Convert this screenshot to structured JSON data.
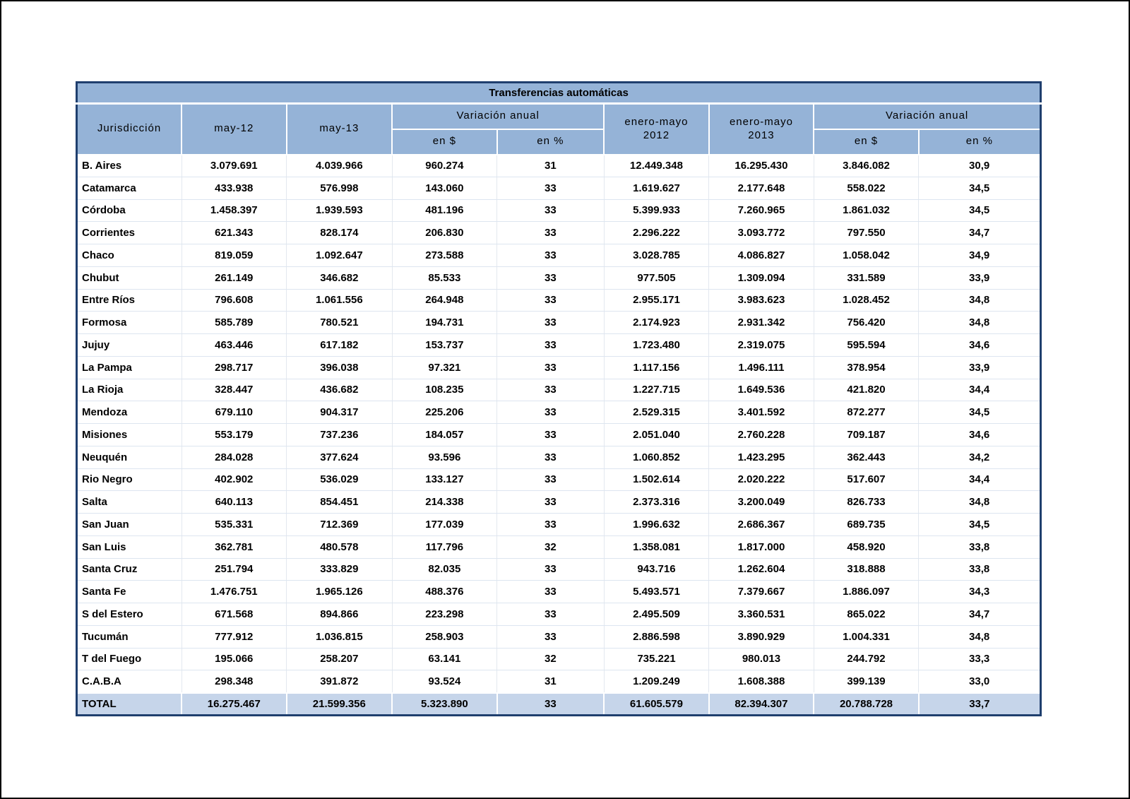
{
  "chart_data": {
    "type": "table",
    "title": "Transferencias automáticas",
    "columns": [
      "Jurisdicción",
      "may-12",
      "may-13",
      "Variación anual en $",
      "Variación anual en %",
      "enero-mayo 2012",
      "enero-mayo 2013",
      "Variación anual en $ (enero-mayo)",
      "Variación anual en % (enero-mayo)"
    ],
    "rows": [
      [
        "B. Aires",
        "3.079.691",
        "4.039.966",
        "960.274",
        "31",
        "12.449.348",
        "16.295.430",
        "3.846.082",
        "30,9"
      ],
      [
        "Catamarca",
        "433.938",
        "576.998",
        "143.060",
        "33",
        "1.619.627",
        "2.177.648",
        "558.022",
        "34,5"
      ],
      [
        "Córdoba",
        "1.458.397",
        "1.939.593",
        "481.196",
        "33",
        "5.399.933",
        "7.260.965",
        "1.861.032",
        "34,5"
      ],
      [
        "Corrientes",
        "621.343",
        "828.174",
        "206.830",
        "33",
        "2.296.222",
        "3.093.772",
        "797.550",
        "34,7"
      ],
      [
        "Chaco",
        "819.059",
        "1.092.647",
        "273.588",
        "33",
        "3.028.785",
        "4.086.827",
        "1.058.042",
        "34,9"
      ],
      [
        "Chubut",
        "261.149",
        "346.682",
        "85.533",
        "33",
        "977.505",
        "1.309.094",
        "331.589",
        "33,9"
      ],
      [
        "Entre Ríos",
        "796.608",
        "1.061.556",
        "264.948",
        "33",
        "2.955.171",
        "3.983.623",
        "1.028.452",
        "34,8"
      ],
      [
        "Formosa",
        "585.789",
        "780.521",
        "194.731",
        "33",
        "2.174.923",
        "2.931.342",
        "756.420",
        "34,8"
      ],
      [
        "Jujuy",
        "463.446",
        "617.182",
        "153.737",
        "33",
        "1.723.480",
        "2.319.075",
        "595.594",
        "34,6"
      ],
      [
        "La Pampa",
        "298.717",
        "396.038",
        "97.321",
        "33",
        "1.117.156",
        "1.496.111",
        "378.954",
        "33,9"
      ],
      [
        "La Rioja",
        "328.447",
        "436.682",
        "108.235",
        "33",
        "1.227.715",
        "1.649.536",
        "421.820",
        "34,4"
      ],
      [
        "Mendoza",
        "679.110",
        "904.317",
        "225.206",
        "33",
        "2.529.315",
        "3.401.592",
        "872.277",
        "34,5"
      ],
      [
        "Misiones",
        "553.179",
        "737.236",
        "184.057",
        "33",
        "2.051.040",
        "2.760.228",
        "709.187",
        "34,6"
      ],
      [
        "Neuquén",
        "284.028",
        "377.624",
        "93.596",
        "33",
        "1.060.852",
        "1.423.295",
        "362.443",
        "34,2"
      ],
      [
        "Rio Negro",
        "402.902",
        "536.029",
        "133.127",
        "33",
        "1.502.614",
        "2.020.222",
        "517.607",
        "34,4"
      ],
      [
        "Salta",
        "640.113",
        "854.451",
        "214.338",
        "33",
        "2.373.316",
        "3.200.049",
        "826.733",
        "34,8"
      ],
      [
        "San Juan",
        "535.331",
        "712.369",
        "177.039",
        "33",
        "1.996.632",
        "2.686.367",
        "689.735",
        "34,5"
      ],
      [
        "San Luis",
        "362.781",
        "480.578",
        "117.796",
        "32",
        "1.358.081",
        "1.817.000",
        "458.920",
        "33,8"
      ],
      [
        "Santa Cruz",
        "251.794",
        "333.829",
        "82.035",
        "33",
        "943.716",
        "1.262.604",
        "318.888",
        "33,8"
      ],
      [
        "Santa Fe",
        "1.476.751",
        "1.965.126",
        "488.376",
        "33",
        "5.493.571",
        "7.379.667",
        "1.886.097",
        "34,3"
      ],
      [
        "S del Estero",
        "671.568",
        "894.866",
        "223.298",
        "33",
        "2.495.509",
        "3.360.531",
        "865.022",
        "34,7"
      ],
      [
        "Tucumán",
        "777.912",
        "1.036.815",
        "258.903",
        "33",
        "2.886.598",
        "3.890.929",
        "1.004.331",
        "34,8"
      ],
      [
        "T del Fuego",
        "195.066",
        "258.207",
        "63.141",
        "32",
        "735.221",
        "980.013",
        "244.792",
        "33,3"
      ],
      [
        "C.A.B.A",
        "298.348",
        "391.872",
        "93.524",
        "31",
        "1.209.249",
        "1.608.388",
        "399.139",
        "33,0"
      ]
    ],
    "total_row": [
      "TOTAL",
      "16.275.467",
      "21.599.356",
      "5.323.890",
      "33",
      "61.605.579",
      "82.394.307",
      "20.788.728",
      "33,7"
    ]
  },
  "header": {
    "jurisdiccion": "Jurisdicción",
    "may12": "may-12",
    "may13": "may-13",
    "variacion_anual_1": "Variación anual",
    "en_pesos_1": "en $",
    "en_pct_1": "en %",
    "enero_mayo": "enero-mayo",
    "y2012": "2012",
    "y2013": "2013",
    "variacion_anual_2": "Variación anual",
    "en_pesos_2": "en $",
    "en_pct_2": "en %"
  },
  "colors": {
    "header_blue": "#95B3D7",
    "total_blue": "#C6D5EA",
    "outer_border_navy": "#1F3F6E",
    "page_frame_black": "#000000"
  }
}
